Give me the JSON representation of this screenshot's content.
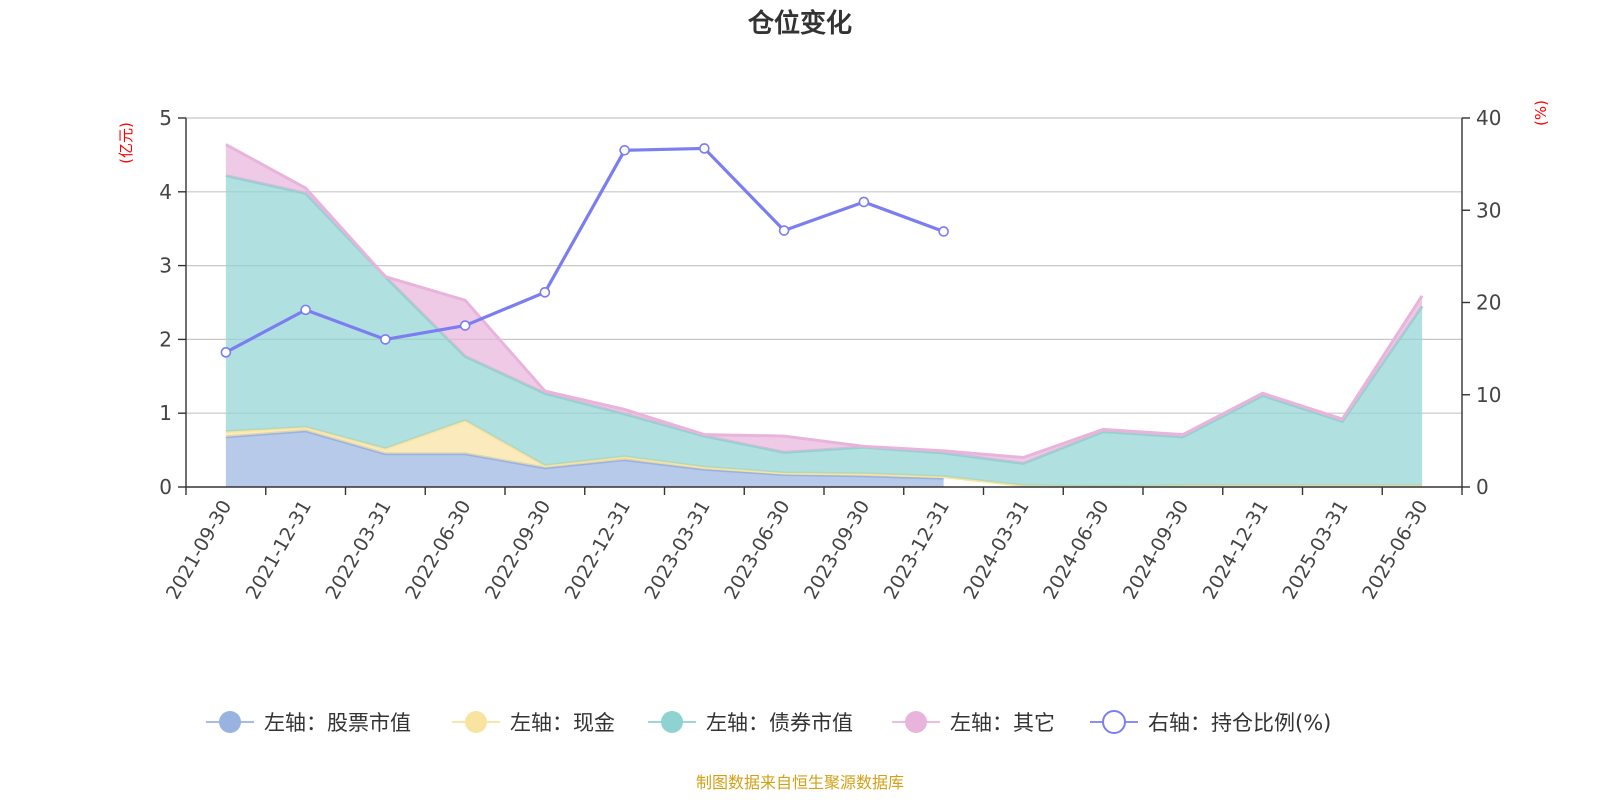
{
  "chart_data": {
    "type": "area",
    "title": "仓位变化",
    "left_axis": {
      "unit": "(亿元)",
      "ylim": [
        0,
        5
      ],
      "ticks": [
        "0",
        "1",
        "2",
        "3",
        "4",
        "5"
      ]
    },
    "right_axis": {
      "unit": "(%)",
      "ylim": [
        0,
        40
      ],
      "ticks": [
        "0",
        "10",
        "20",
        "30",
        "40"
      ]
    },
    "categories": [
      "2021-09-30",
      "2021-12-31",
      "2022-03-31",
      "2022-06-30",
      "2022-09-30",
      "2022-12-31",
      "2023-03-31",
      "2023-06-30",
      "2023-09-30",
      "2023-12-31",
      "2024-03-31",
      "2024-06-30",
      "2024-09-30",
      "2024-12-31",
      "2025-03-31",
      "2025-06-30"
    ],
    "series": [
      {
        "name": "左轴：股票市值",
        "axis": "left",
        "stacked": true,
        "color": "#98b3e0",
        "values": [
          0.68,
          0.76,
          0.45,
          0.45,
          0.26,
          0.37,
          0.24,
          0.17,
          0.15,
          0.12,
          null,
          null,
          null,
          null,
          null,
          null
        ]
      },
      {
        "name": "左轴：现金",
        "axis": "left",
        "stacked": true,
        "color": "#f9e3a0",
        "values": [
          0.07,
          0.05,
          0.07,
          0.45,
          0.03,
          0.04,
          0.03,
          0.02,
          0.03,
          0.02,
          0.02,
          0.01,
          0.02,
          0.02,
          0.02,
          0.02
        ]
      },
      {
        "name": "左轴：债券市值",
        "axis": "left",
        "stacked": true,
        "color": "#8fd3d1",
        "values": [
          3.47,
          3.17,
          2.33,
          0.87,
          0.98,
          0.58,
          0.42,
          0.28,
          0.36,
          0.32,
          0.3,
          0.74,
          0.66,
          1.22,
          0.87,
          2.43
        ]
      },
      {
        "name": "左轴：其它",
        "axis": "left",
        "stacked": true,
        "color": "#e8b4db",
        "values": [
          0.42,
          0.07,
          0.0,
          0.76,
          0.03,
          0.06,
          0.02,
          0.22,
          0.01,
          0.03,
          0.08,
          0.03,
          0.03,
          0.03,
          0.03,
          0.14
        ]
      },
      {
        "name": "右轴：持仓比例(%)",
        "axis": "right",
        "type": "line",
        "color": "#7b7ef0",
        "values": [
          14.6,
          19.2,
          16.0,
          17.5,
          21.1,
          36.5,
          36.7,
          27.8,
          30.9,
          27.7,
          null,
          null,
          null,
          null,
          null,
          null
        ]
      }
    ],
    "grid": true,
    "legend_position": "bottom",
    "source": "制图数据来自恒生聚源数据库"
  }
}
